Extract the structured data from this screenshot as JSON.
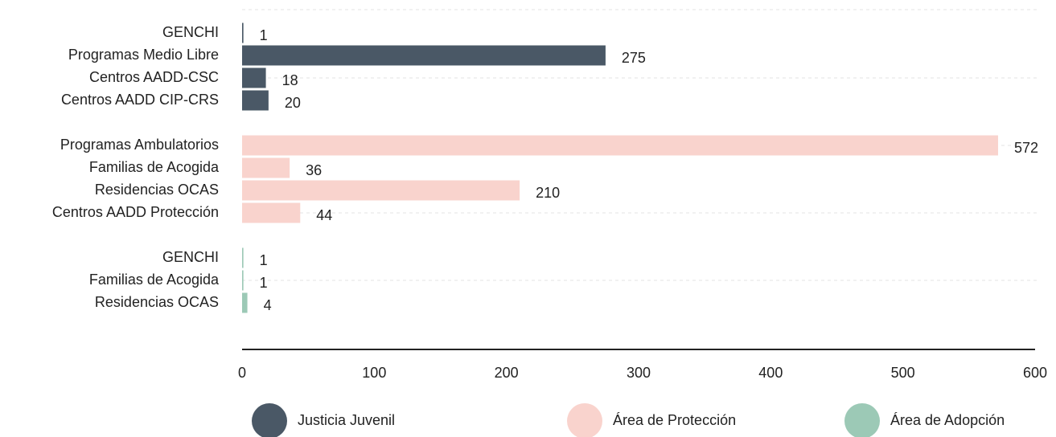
{
  "chart_data": {
    "type": "bar",
    "orientation": "horizontal",
    "series": [
      {
        "name": "Justicia Juvenil",
        "color": "#4a5866",
        "categories": [
          "GENCHI",
          "Programas Medio Libre",
          "Centros AADD-CSC",
          "Centros AADD CIP-CRS"
        ],
        "values": [
          1,
          275,
          18,
          20
        ]
      },
      {
        "name": "Área de Protección",
        "color": "#f9d3cd",
        "categories": [
          "Programas Ambulatorios",
          "Familias de Acogida",
          "Residencias OCAS",
          "Centros AADD Protección"
        ],
        "values": [
          572,
          36,
          210,
          44
        ]
      },
      {
        "name": "Área de Adopción",
        "color": "#9cc9b6",
        "categories": [
          "GENCHI",
          "Familias de Acogida",
          "Residencias OCAS"
        ],
        "values": [
          1,
          1,
          4
        ]
      }
    ],
    "xlim": [
      0,
      600
    ],
    "xticks": [
      0,
      100,
      200,
      300,
      400,
      500,
      600
    ]
  }
}
